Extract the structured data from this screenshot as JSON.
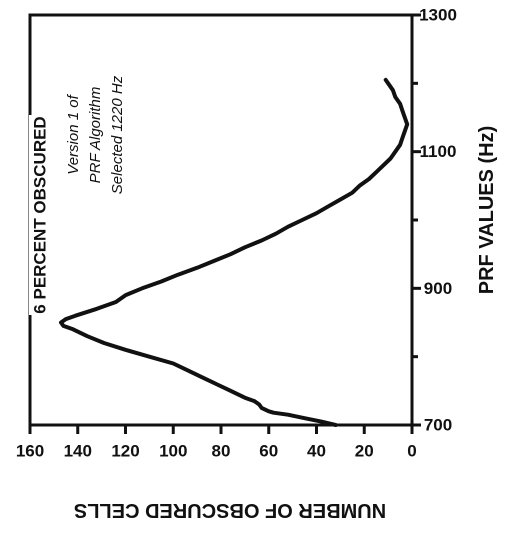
{
  "chart_data": {
    "type": "line",
    "orientation": "rotated-90",
    "xlabel": "PRF VALUES (Hz)",
    "ylabel": "NUMBER OF OBSCURED CELLS",
    "xlim": [
      700,
      1300
    ],
    "ylim": [
      0,
      160
    ],
    "x_ticks": [
      "700",
      "900",
      "1100",
      "1300"
    ],
    "x_minor_ticks": [
      800,
      1000,
      1200
    ],
    "y_ticks": [
      "160",
      "140",
      "120",
      "100",
      "80",
      "60",
      "40",
      "20",
      "0"
    ],
    "grid": false,
    "threshold": {
      "label": "6 PERCENT OBSCURED",
      "value": 150
    },
    "annotation": [
      "Version 1 of",
      "PRF Algorithm",
      "Selected 1220 Hz"
    ],
    "series": [
      {
        "x": [
          700,
          705,
          710,
          715,
          718,
          720,
          725,
          730,
          735,
          740,
          750,
          760,
          770,
          780,
          790,
          800,
          810,
          820,
          830,
          840,
          845,
          850,
          855,
          860,
          870,
          880,
          890,
          900,
          910,
          920,
          930,
          940,
          950,
          960,
          970,
          980,
          990,
          1000,
          1010,
          1020,
          1030,
          1040,
          1050,
          1060,
          1070,
          1080,
          1090,
          1100,
          1110,
          1120,
          1130,
          1140,
          1150,
          1160,
          1170,
          1180,
          1190,
          1200,
          1205
        ],
        "y": [
          32,
          38,
          45,
          52,
          58,
          60,
          63,
          64,
          66,
          70,
          76,
          82,
          88,
          94,
          100,
          110,
          120,
          129,
          136,
          142,
          146,
          147,
          145,
          141,
          132,
          124,
          120,
          113,
          105,
          98,
          90,
          83,
          76,
          70,
          63,
          57,
          52,
          46,
          40,
          35,
          30,
          25,
          22,
          18,
          15,
          12,
          9,
          7,
          5,
          4,
          3,
          2,
          3,
          4,
          5,
          7,
          8,
          10,
          11
        ]
      }
    ]
  }
}
